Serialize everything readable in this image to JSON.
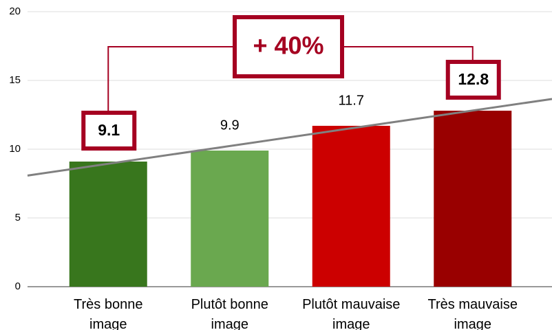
{
  "chart_data": {
    "type": "bar",
    "categories": [
      "Très bonne image",
      "Plutôt bonne image",
      "Plutôt mauvaise image",
      "Très mauvaise image"
    ],
    "values": [
      9.1,
      9.9,
      11.7,
      12.8
    ],
    "colors": [
      "#38761d",
      "#6aa84f",
      "#cc0000",
      "#990000"
    ],
    "highlighted": [
      true,
      false,
      false,
      true
    ],
    "highlight_color": "#a50021",
    "annotation": "+ 40%",
    "trendline": true,
    "ylim": [
      0,
      20
    ],
    "yticks": [
      0,
      5,
      10,
      15,
      20
    ],
    "grid": true
  }
}
